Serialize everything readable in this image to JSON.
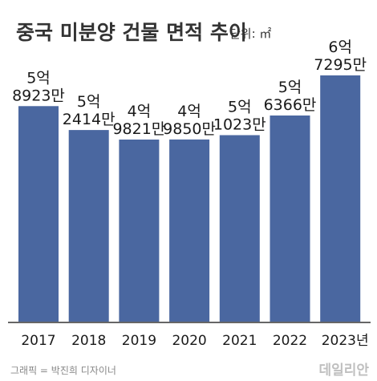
{
  "chart_data": {
    "type": "bar",
    "title": "중국 미분양 건물 면적 추이",
    "unit_label": "단위: ㎡",
    "categories": [
      "2017",
      "2018",
      "2019",
      "2020",
      "2021",
      "2022",
      "2023년"
    ],
    "values": [
      589230000,
      524140000,
      498210000,
      498500000,
      510230000,
      563660000,
      672950000
    ],
    "labels": [
      [
        "5억",
        "8923만"
      ],
      [
        "5억",
        "2414만"
      ],
      [
        "4억",
        "9821만"
      ],
      [
        "4억",
        "9850만"
      ],
      [
        "5억",
        "1023만"
      ],
      [
        "5억",
        "6366만"
      ],
      [
        "6억",
        "7295만"
      ]
    ],
    "colors": {
      "bar": "#4a67a0"
    }
  },
  "footer": {
    "credit": "그래픽 = 박진희 디자이너",
    "brand": "데일리안"
  }
}
